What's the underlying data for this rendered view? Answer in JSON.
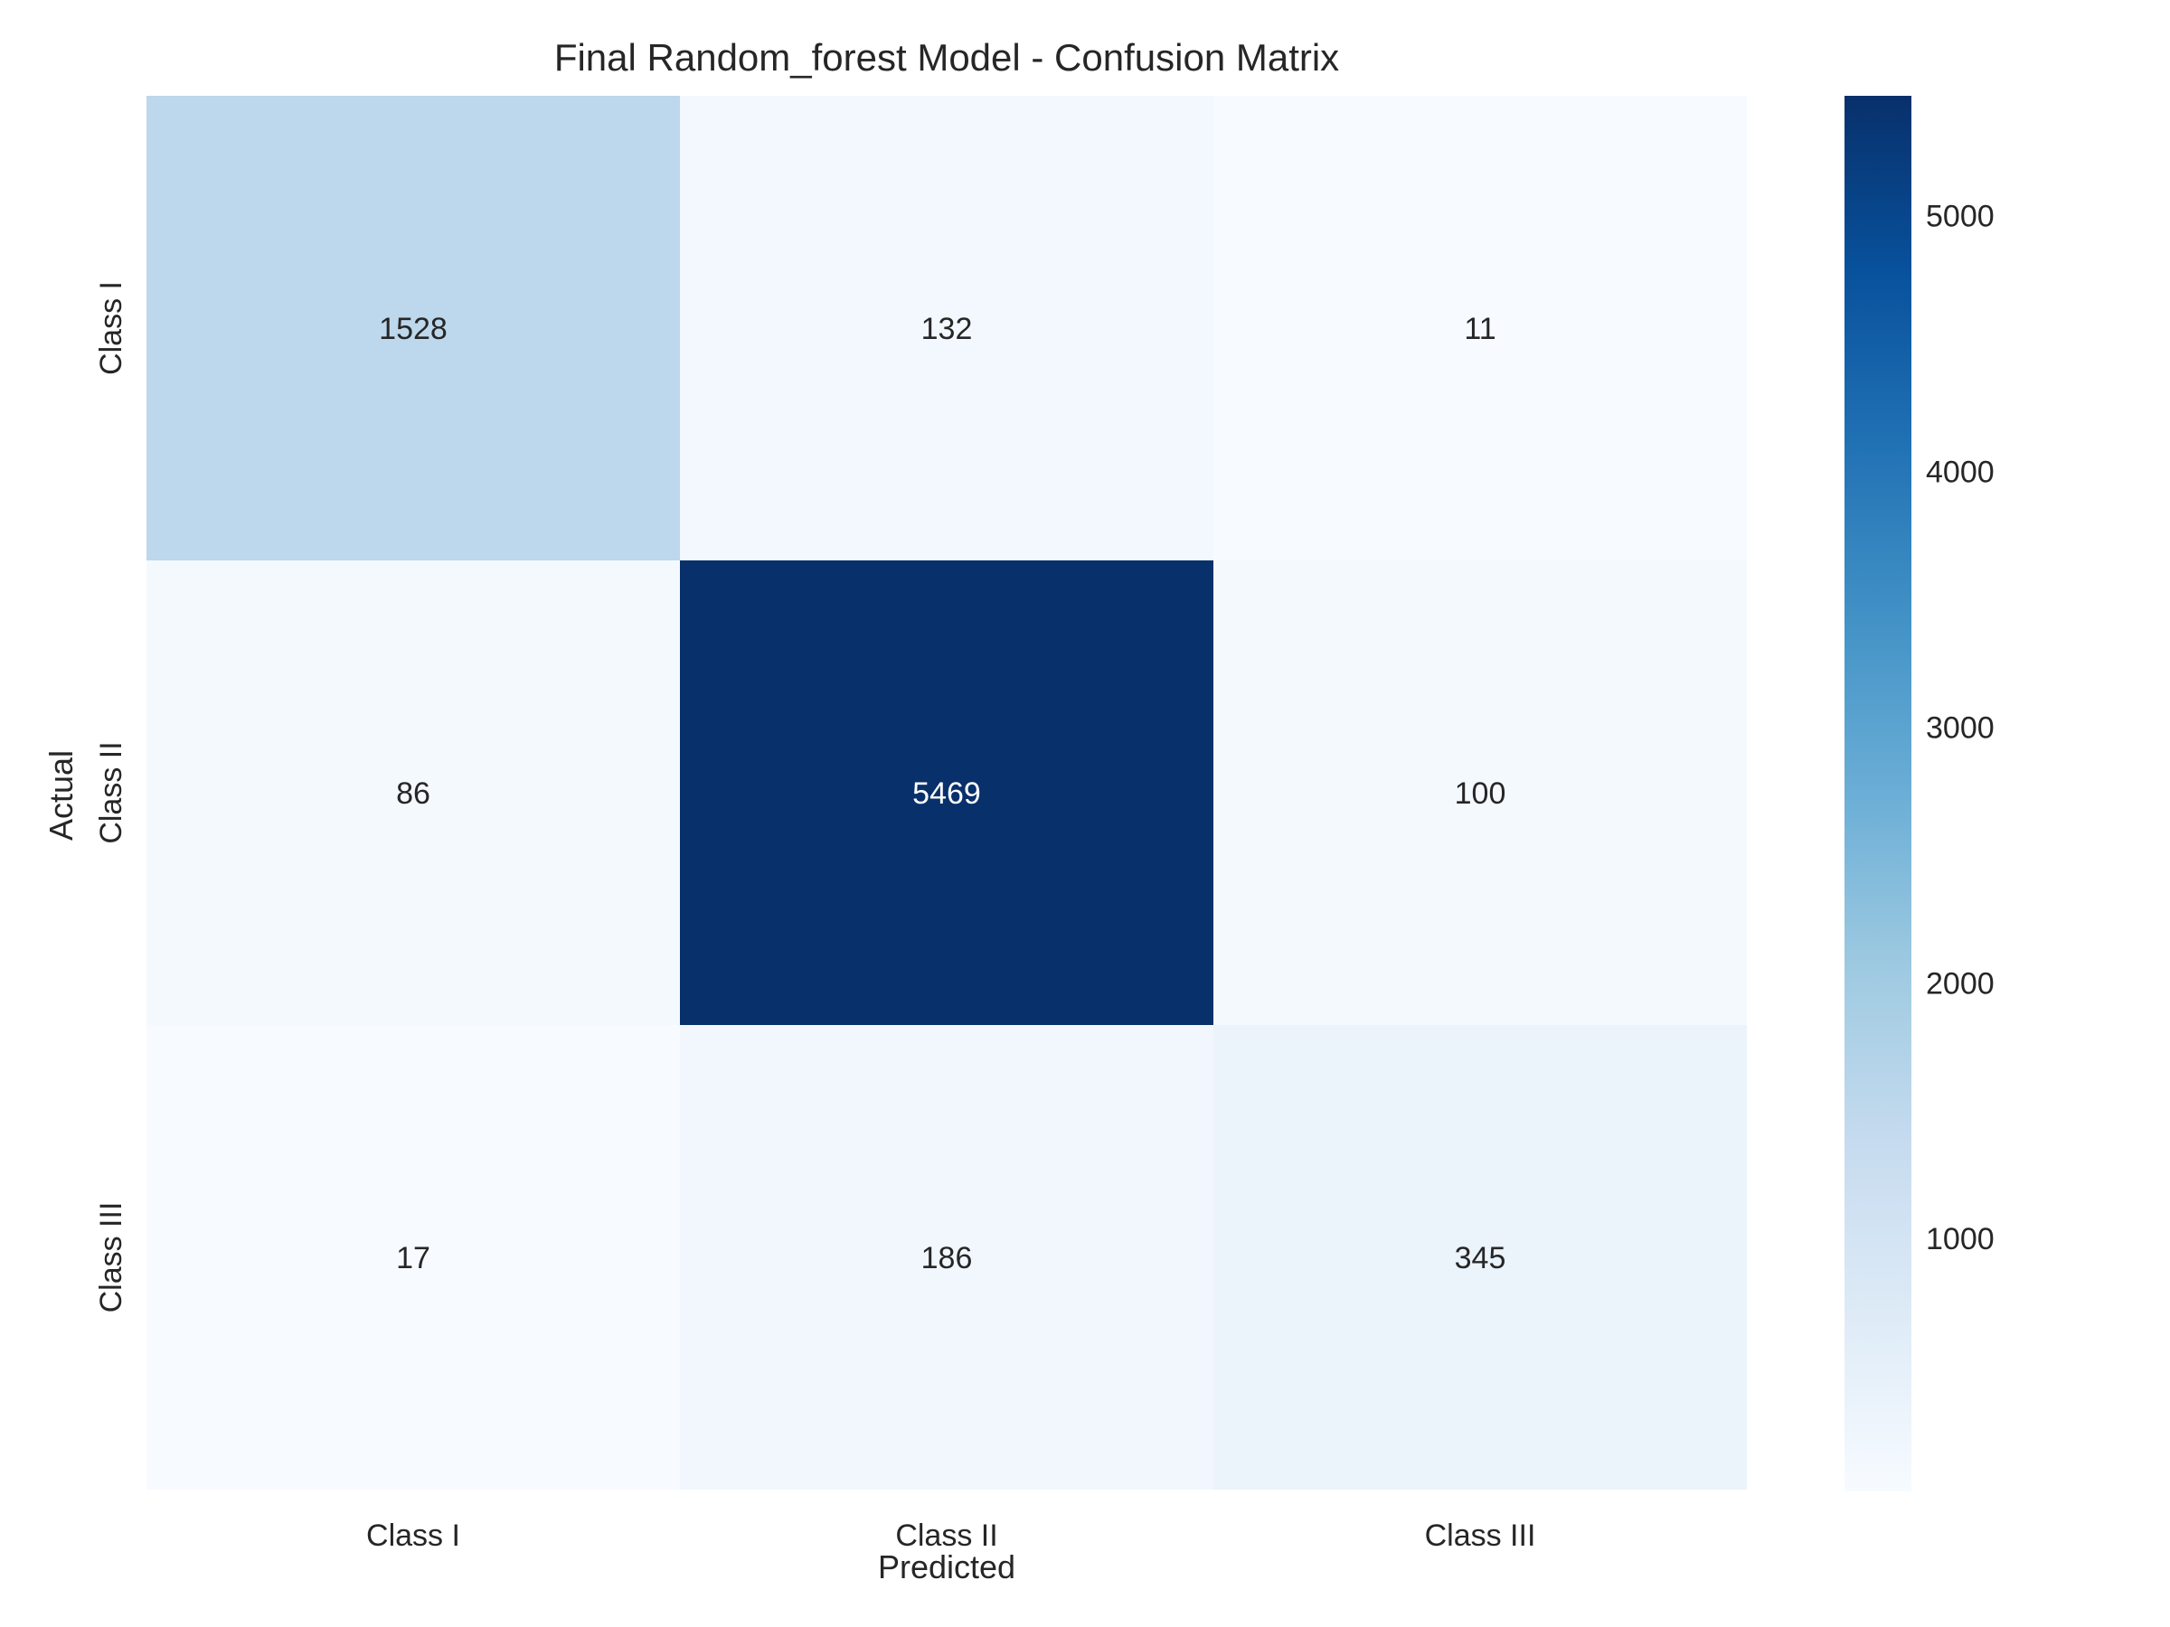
{
  "chart_data": {
    "type": "heatmap",
    "title": "Final Random_forest Model - Confusion Matrix",
    "xlabel": "Predicted",
    "ylabel": "Actual",
    "x_categories": [
      "Class I",
      "Class II",
      "Class III"
    ],
    "y_categories": [
      "Class I",
      "Class II",
      "Class III"
    ],
    "values": [
      [
        1528,
        132,
        11
      ],
      [
        86,
        5469,
        100
      ],
      [
        17,
        186,
        345
      ]
    ],
    "colormap": "Blues",
    "colorbar": {
      "vmin": 11,
      "vmax": 5469,
      "ticks": [
        1000,
        2000,
        3000,
        4000,
        5000
      ],
      "tick_labels": [
        "1000",
        "2000",
        "3000",
        "4000",
        "5000"
      ]
    },
    "grid": false
  }
}
